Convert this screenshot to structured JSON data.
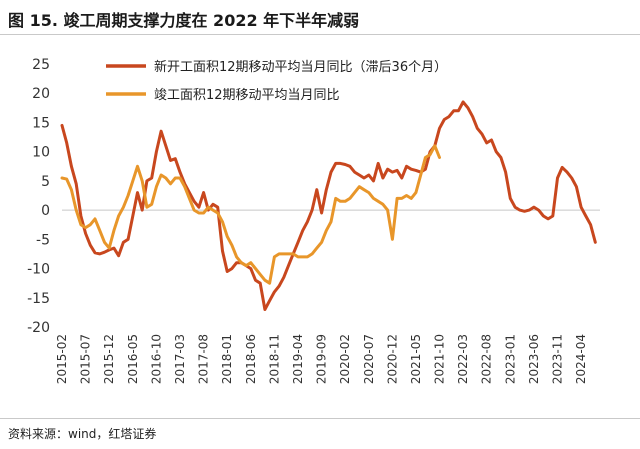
{
  "header": {
    "title": "图 15. 竣工周期支撑力度在 2022 年下半年减弱"
  },
  "footer": {
    "source": "资料来源：wind，红塔证券"
  },
  "chart_data": {
    "type": "line",
    "title": "",
    "xlabel": "",
    "ylabel": "",
    "ylim": [
      -20,
      25
    ],
    "yticks": [
      25,
      20,
      15,
      10,
      5,
      0,
      -5,
      -10,
      -15,
      -20
    ],
    "xlim": [
      "2015-02",
      "2024-08"
    ],
    "xticks": [
      "2015-02",
      "2015-07",
      "2015-12",
      "2016-05",
      "2016-10",
      "2017-03",
      "2017-08",
      "2018-01",
      "2018-06",
      "2018-11",
      "2019-04",
      "2019-09",
      "2020-02",
      "2020-07",
      "2020-12",
      "2021-05",
      "2021-10",
      "2022-03",
      "2022-08",
      "2023-01",
      "2023-06",
      "2023-11",
      "2024-04"
    ],
    "grid": false,
    "legend_position": "top",
    "colors": {
      "series1": "#C8471E",
      "series2": "#E8962A"
    },
    "series": [
      {
        "name": "新开工面积12期移动平均当月同比（滞后36个月）",
        "color": "#C8471E",
        "points": [
          [
            "2015-02",
            14.5
          ],
          [
            "2015-03",
            11.5
          ],
          [
            "2015-04",
            7.5
          ],
          [
            "2015-05",
            4.5
          ],
          [
            "2015-06",
            -1.0
          ],
          [
            "2015-07",
            -4.0
          ],
          [
            "2015-08",
            -6.0
          ],
          [
            "2015-09",
            -7.3
          ],
          [
            "2015-10",
            -7.5
          ],
          [
            "2015-11",
            -7.2
          ],
          [
            "2015-12",
            -6.8
          ],
          [
            "2016-01",
            -6.5
          ],
          [
            "2016-02",
            -7.8
          ],
          [
            "2016-03",
            -5.5
          ],
          [
            "2016-04",
            -5.0
          ],
          [
            "2016-05",
            -1.0
          ],
          [
            "2016-06",
            3.0
          ],
          [
            "2016-07",
            0.0
          ],
          [
            "2016-08",
            5.0
          ],
          [
            "2016-09",
            5.5
          ],
          [
            "2016-10",
            10.0
          ],
          [
            "2016-11",
            13.5
          ],
          [
            "2016-12",
            11.0
          ],
          [
            "2017-01",
            8.5
          ],
          [
            "2017-02",
            8.8
          ],
          [
            "2017-03",
            6.5
          ],
          [
            "2017-04",
            4.5
          ],
          [
            "2017-05",
            3.0
          ],
          [
            "2017-06",
            1.5
          ],
          [
            "2017-07",
            0.5
          ],
          [
            "2017-08",
            3.0
          ],
          [
            "2017-09",
            0.0
          ],
          [
            "2017-10",
            1.0
          ],
          [
            "2017-11",
            0.5
          ],
          [
            "2017-12",
            -7.0
          ],
          [
            "2018-01",
            -10.5
          ],
          [
            "2018-02",
            -10.0
          ],
          [
            "2018-03",
            -9.0
          ],
          [
            "2018-04",
            -9.0
          ],
          [
            "2018-05",
            -9.5
          ],
          [
            "2018-06",
            -10.0
          ],
          [
            "2018-07",
            -12.0
          ],
          [
            "2018-08",
            -12.5
          ],
          [
            "2018-09",
            -17.0
          ],
          [
            "2018-10",
            -15.5
          ],
          [
            "2018-11",
            -14.0
          ],
          [
            "2018-12",
            -13.0
          ],
          [
            "2019-01",
            -11.5
          ],
          [
            "2019-02",
            -9.5
          ],
          [
            "2019-03",
            -7.5
          ],
          [
            "2019-04",
            -5.5
          ],
          [
            "2019-05",
            -3.5
          ],
          [
            "2019-06",
            -2.0
          ],
          [
            "2019-07",
            0.0
          ],
          [
            "2019-08",
            3.5
          ],
          [
            "2019-09",
            -0.5
          ],
          [
            "2019-10",
            3.5
          ],
          [
            "2019-11",
            6.5
          ],
          [
            "2019-12",
            8.0
          ],
          [
            "2020-01",
            8.0
          ],
          [
            "2020-02",
            7.8
          ],
          [
            "2020-03",
            7.5
          ],
          [
            "2020-04",
            6.5
          ],
          [
            "2020-05",
            6.0
          ],
          [
            "2020-06",
            5.5
          ],
          [
            "2020-07",
            6.0
          ],
          [
            "2020-08",
            5.0
          ],
          [
            "2020-09",
            8.0
          ],
          [
            "2020-10",
            5.5
          ],
          [
            "2020-11",
            7.0
          ],
          [
            "2020-12",
            6.5
          ],
          [
            "2021-01",
            6.8
          ],
          [
            "2021-02",
            5.5
          ],
          [
            "2021-03",
            7.5
          ],
          [
            "2021-04",
            7.0
          ],
          [
            "2021-05",
            6.8
          ],
          [
            "2021-06",
            6.5
          ],
          [
            "2021-07",
            7.0
          ],
          [
            "2021-08",
            10.0
          ],
          [
            "2021-09",
            11.0
          ],
          [
            "2021-10",
            14.0
          ],
          [
            "2021-11",
            15.5
          ],
          [
            "2021-12",
            16.0
          ],
          [
            "2022-01",
            17.0
          ],
          [
            "2022-02",
            17.0
          ],
          [
            "2022-03",
            18.5
          ],
          [
            "2022-04",
            17.5
          ],
          [
            "2022-05",
            16.0
          ],
          [
            "2022-06",
            14.0
          ],
          [
            "2022-07",
            13.0
          ],
          [
            "2022-08",
            11.5
          ],
          [
            "2022-09",
            12.0
          ],
          [
            "2022-10",
            10.0
          ],
          [
            "2022-11",
            9.0
          ],
          [
            "2022-12",
            6.5
          ],
          [
            "2023-01",
            2.0
          ],
          [
            "2023-02",
            0.5
          ],
          [
            "2023-03",
            0.0
          ],
          [
            "2023-04",
            -0.2
          ],
          [
            "2023-05",
            0.0
          ],
          [
            "2023-06",
            0.5
          ],
          [
            "2023-07",
            0.0
          ],
          [
            "2023-08",
            -1.0
          ],
          [
            "2023-09",
            -1.5
          ],
          [
            "2023-10",
            -1.0
          ],
          [
            "2023-11",
            5.5
          ],
          [
            "2023-12",
            7.3
          ],
          [
            "2024-01",
            6.5
          ],
          [
            "2024-02",
            5.5
          ],
          [
            "2024-03",
            4.0
          ],
          [
            "2024-04",
            0.5
          ],
          [
            "2024-05",
            -1.0
          ],
          [
            "2024-06",
            -2.5
          ],
          [
            "2024-07",
            -5.5
          ]
        ]
      },
      {
        "name": "竣工面积12期移动平均当月同比",
        "color": "#E8962A",
        "points": [
          [
            "2015-02",
            5.5
          ],
          [
            "2015-03",
            5.3
          ],
          [
            "2015-04",
            3.5
          ],
          [
            "2015-05",
            0.0
          ],
          [
            "2015-06",
            -2.5
          ],
          [
            "2015-07",
            -3.0
          ],
          [
            "2015-08",
            -2.5
          ],
          [
            "2015-09",
            -1.5
          ],
          [
            "2015-10",
            -3.5
          ],
          [
            "2015-11",
            -5.5
          ],
          [
            "2015-12",
            -6.5
          ],
          [
            "2016-01",
            -3.5
          ],
          [
            "2016-02",
            -1.0
          ],
          [
            "2016-03",
            0.5
          ],
          [
            "2016-04",
            2.5
          ],
          [
            "2016-05",
            5.0
          ],
          [
            "2016-06",
            7.5
          ],
          [
            "2016-07",
            5.0
          ],
          [
            "2016-08",
            0.5
          ],
          [
            "2016-09",
            1.0
          ],
          [
            "2016-10",
            4.0
          ],
          [
            "2016-11",
            6.0
          ],
          [
            "2016-12",
            5.5
          ],
          [
            "2017-01",
            4.5
          ],
          [
            "2017-02",
            5.5
          ],
          [
            "2017-03",
            5.5
          ],
          [
            "2017-04",
            4.0
          ],
          [
            "2017-05",
            2.0
          ],
          [
            "2017-06",
            0.0
          ],
          [
            "2017-07",
            -0.5
          ],
          [
            "2017-08",
            -0.5
          ],
          [
            "2017-09",
            0.5
          ],
          [
            "2017-10",
            0.0
          ],
          [
            "2017-11",
            -0.5
          ],
          [
            "2017-12",
            -2.0
          ],
          [
            "2018-01",
            -4.5
          ],
          [
            "2018-02",
            -6.0
          ],
          [
            "2018-03",
            -8.0
          ],
          [
            "2018-04",
            -9.0
          ],
          [
            "2018-05",
            -9.5
          ],
          [
            "2018-06",
            -9.0
          ],
          [
            "2018-07",
            -10.0
          ],
          [
            "2018-08",
            -11.0
          ],
          [
            "2018-09",
            -12.0
          ],
          [
            "2018-10",
            -12.5
          ],
          [
            "2018-11",
            -8.0
          ],
          [
            "2018-12",
            -7.5
          ],
          [
            "2019-01",
            -7.5
          ],
          [
            "2019-02",
            -7.5
          ],
          [
            "2019-03",
            -7.5
          ],
          [
            "2019-04",
            -8.0
          ],
          [
            "2019-05",
            -8.0
          ],
          [
            "2019-06",
            -8.0
          ],
          [
            "2019-07",
            -7.5
          ],
          [
            "2019-08",
            -6.5
          ],
          [
            "2019-09",
            -5.5
          ],
          [
            "2019-10",
            -3.5
          ],
          [
            "2019-11",
            -2.0
          ],
          [
            "2019-12",
            2.0
          ],
          [
            "2020-01",
            1.5
          ],
          [
            "2020-02",
            1.5
          ],
          [
            "2020-03",
            2.0
          ],
          [
            "2020-04",
            3.0
          ],
          [
            "2020-05",
            4.0
          ],
          [
            "2020-06",
            3.5
          ],
          [
            "2020-07",
            3.0
          ],
          [
            "2020-08",
            2.0
          ],
          [
            "2020-09",
            1.5
          ],
          [
            "2020-10",
            1.0
          ],
          [
            "2020-11",
            0.0
          ],
          [
            "2020-12",
            -5.0
          ],
          [
            "2021-01",
            2.0
          ],
          [
            "2021-02",
            2.0
          ],
          [
            "2021-03",
            2.5
          ],
          [
            "2021-04",
            2.0
          ],
          [
            "2021-05",
            3.0
          ],
          [
            "2021-06",
            6.0
          ],
          [
            "2021-07",
            9.0
          ],
          [
            "2021-08",
            9.5
          ],
          [
            "2021-09",
            11.0
          ],
          [
            "2021-10",
            9.0
          ]
        ]
      }
    ]
  }
}
